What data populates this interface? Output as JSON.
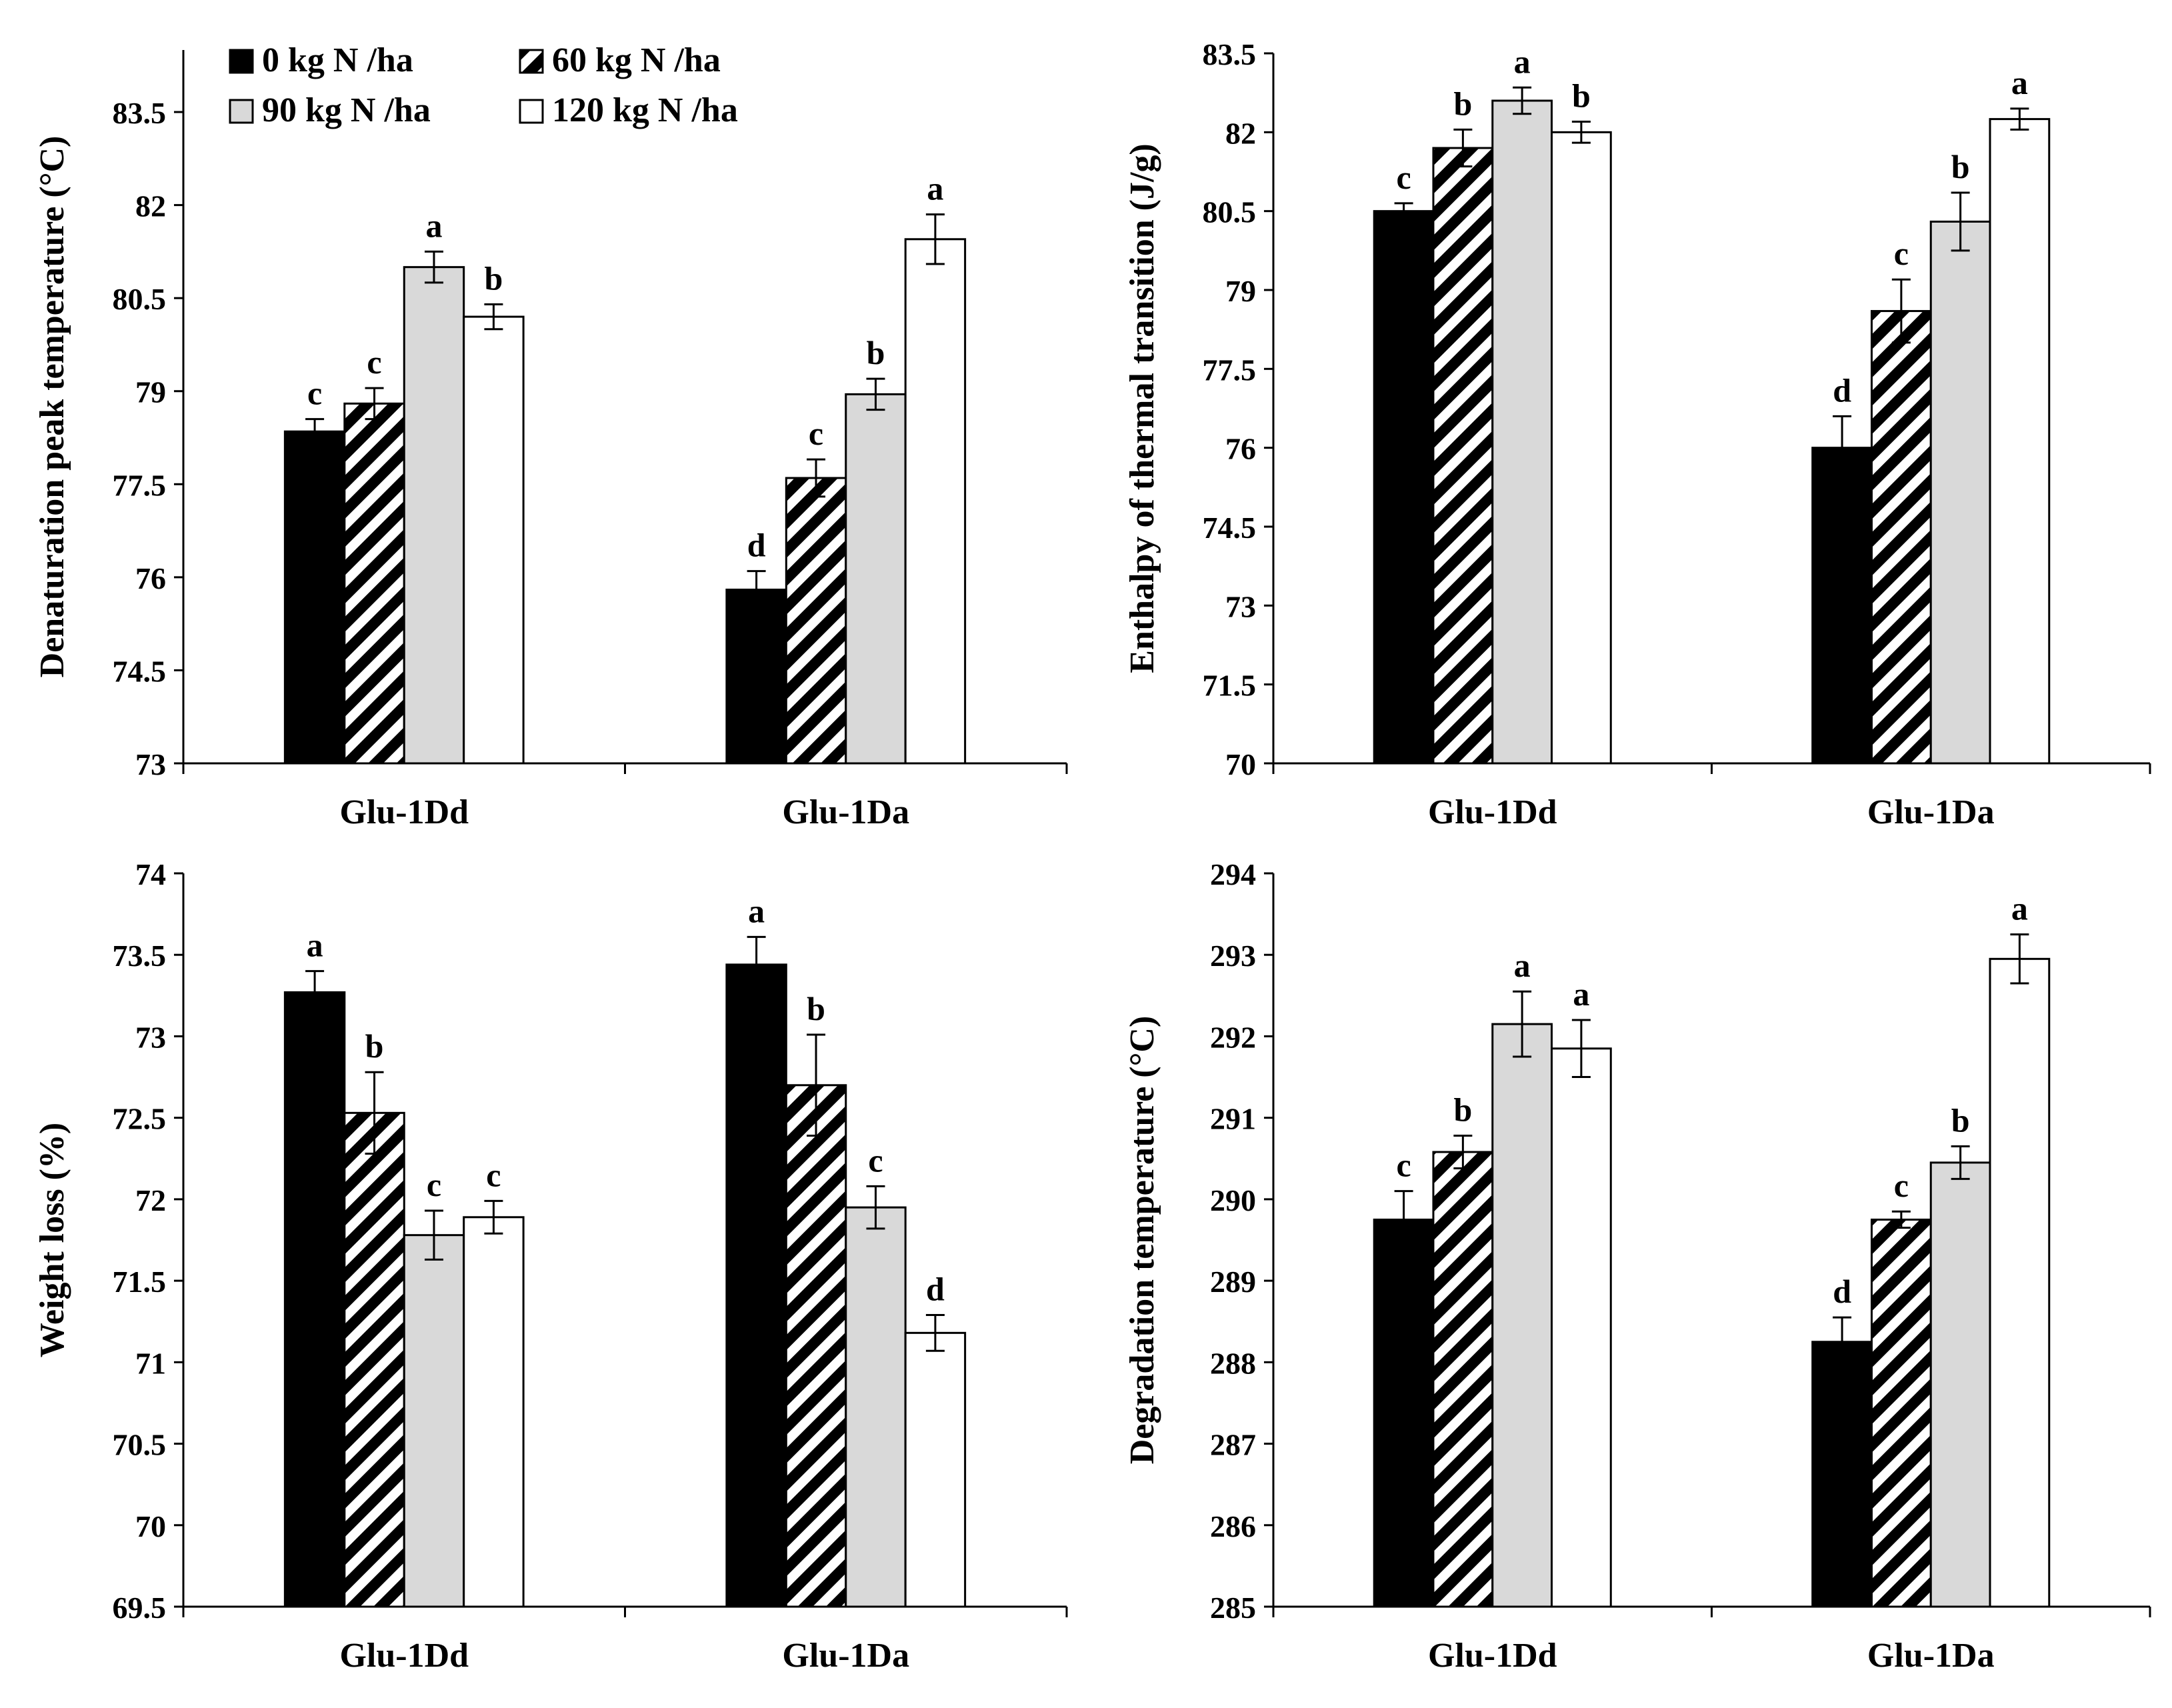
{
  "legend": {
    "items": [
      {
        "label": "0 kg N /ha",
        "pattern": "solid-black"
      },
      {
        "label": "60 kg N /ha",
        "pattern": "hatched"
      },
      {
        "label": "90 kg N /ha",
        "pattern": "light-gray"
      },
      {
        "label": "120 kg N /ha",
        "pattern": "white"
      }
    ]
  },
  "colors": {
    "black": "#000000",
    "gray": "#d9d9d9",
    "white": "#ffffff",
    "axis": "#000000"
  },
  "chart_data": [
    {
      "type": "bar",
      "title": "",
      "ylabel": "Denaturation peak temperature (°C)",
      "xlabel": "",
      "categories": [
        "Glu-1Dd",
        "Glu-1Da"
      ],
      "ylim": [
        73,
        84.5
      ],
      "yticks": [
        73,
        74.5,
        76,
        77.5,
        79,
        80.5,
        82,
        83.5
      ],
      "ytick_labels": [
        "73",
        "74.5",
        "76",
        "77.5",
        "79",
        "80.5",
        "82",
        "83.5"
      ],
      "series": [
        {
          "name": "0 kg N /ha",
          "values": [
            78.35,
            75.8
          ],
          "errors": [
            0.2,
            0.3
          ],
          "letters": [
            "c",
            "d"
          ]
        },
        {
          "name": "60 kg N /ha",
          "values": [
            78.8,
            77.6
          ],
          "errors": [
            0.25,
            0.3
          ],
          "letters": [
            "c",
            "c"
          ]
        },
        {
          "name": "90 kg N /ha",
          "values": [
            81.0,
            78.95
          ],
          "errors": [
            0.25,
            0.25
          ],
          "letters": [
            "a",
            "b"
          ]
        },
        {
          "name": "120 kg N /ha",
          "values": [
            80.2,
            81.45
          ],
          "errors": [
            0.2,
            0.4
          ],
          "letters": [
            "b",
            "a"
          ]
        }
      ]
    },
    {
      "type": "bar",
      "title": "",
      "ylabel": "Enthalpy of thermal transition (J/g)",
      "xlabel": "",
      "categories": [
        "Glu-1Dd",
        "Glu-1Da"
      ],
      "ylim": [
        70,
        83.5
      ],
      "yticks": [
        70,
        71.5,
        73,
        74.5,
        76,
        77.5,
        79,
        80.5,
        82,
        83.5
      ],
      "ytick_labels": [
        "70",
        "71.5",
        "73",
        "74.5",
        "76",
        "77.5",
        "79",
        "80.5",
        "82",
        "83.5"
      ],
      "series": [
        {
          "name": "0 kg N /ha",
          "values": [
            80.5,
            76.0
          ],
          "errors": [
            0.15,
            0.6
          ],
          "letters": [
            "c",
            "d"
          ]
        },
        {
          "name": "60 kg N /ha",
          "values": [
            81.7,
            78.6
          ],
          "errors": [
            0.35,
            0.6
          ],
          "letters": [
            "b",
            "c"
          ]
        },
        {
          "name": "90 kg N /ha",
          "values": [
            82.6,
            80.3
          ],
          "errors": [
            0.25,
            0.55
          ],
          "letters": [
            "a",
            "b"
          ]
        },
        {
          "name": "120 kg N /ha",
          "values": [
            82.0,
            82.25
          ],
          "errors": [
            0.2,
            0.2
          ],
          "letters": [
            "b",
            "a"
          ]
        }
      ]
    },
    {
      "type": "bar",
      "title": "",
      "ylabel": "Weight loss (%)",
      "xlabel": "",
      "categories": [
        "Glu-1Dd",
        "Glu-1Da"
      ],
      "ylim": [
        69.5,
        74
      ],
      "yticks": [
        69.5,
        70,
        70.5,
        71,
        71.5,
        72,
        72.5,
        73,
        73.5,
        74
      ],
      "ytick_labels": [
        "69.5",
        "70",
        "70.5",
        "71",
        "71.5",
        "72",
        "72.5",
        "73",
        "73.5",
        "74"
      ],
      "series": [
        {
          "name": "0 kg N /ha",
          "values": [
            73.27,
            73.44
          ],
          "errors": [
            0.13,
            0.17
          ],
          "letters": [
            "a",
            "a"
          ]
        },
        {
          "name": "60 kg N /ha",
          "values": [
            72.53,
            72.7
          ],
          "errors": [
            0.25,
            0.31
          ],
          "letters": [
            "b",
            "b"
          ]
        },
        {
          "name": "90 kg N /ha",
          "values": [
            71.78,
            71.95
          ],
          "errors": [
            0.15,
            0.13
          ],
          "letters": [
            "c",
            "c"
          ]
        },
        {
          "name": "120 kg N /ha",
          "values": [
            71.89,
            71.18
          ],
          "errors": [
            0.1,
            0.11
          ],
          "letters": [
            "c",
            "d"
          ]
        }
      ]
    },
    {
      "type": "bar",
      "title": "",
      "ylabel": "Degradation temperature (°C)",
      "xlabel": "",
      "categories": [
        "Glu-1Dd",
        "Glu-1Da"
      ],
      "ylim": [
        285,
        294
      ],
      "yticks": [
        285,
        286,
        287,
        288,
        289,
        290,
        291,
        292,
        293,
        294
      ],
      "ytick_labels": [
        "285",
        "286",
        "287",
        "288",
        "289",
        "290",
        "291",
        "292",
        "293",
        "294"
      ],
      "series": [
        {
          "name": "0 kg N /ha",
          "values": [
            289.75,
            288.25
          ],
          "errors": [
            0.35,
            0.3
          ],
          "letters": [
            "c",
            "d"
          ]
        },
        {
          "name": "60 kg N /ha",
          "values": [
            290.58,
            289.75
          ],
          "errors": [
            0.2,
            0.1
          ],
          "letters": [
            "b",
            "c"
          ]
        },
        {
          "name": "90 kg N /ha",
          "values": [
            292.15,
            290.45
          ],
          "errors": [
            0.4,
            0.2
          ],
          "letters": [
            "a",
            "b"
          ]
        },
        {
          "name": "120 kg N /ha",
          "values": [
            291.85,
            292.95
          ],
          "errors": [
            0.35,
            0.3
          ],
          "letters": [
            "a",
            "a"
          ]
        }
      ]
    }
  ]
}
